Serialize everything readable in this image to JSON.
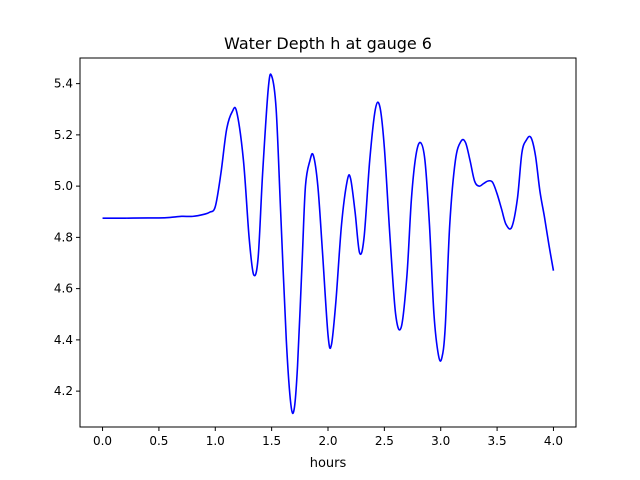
{
  "chart_data": {
    "type": "line",
    "title": "Water Depth h at gauge 6",
    "xlabel": "hours",
    "ylabel": "",
    "xlim": [
      -0.2,
      4.2
    ],
    "ylim": [
      4.06,
      5.5
    ],
    "xticks": [
      0.0,
      0.5,
      1.0,
      1.5,
      2.0,
      2.5,
      3.0,
      3.5,
      4.0
    ],
    "xtick_labels": [
      "0.0",
      "0.5",
      "1.0",
      "1.5",
      "2.0",
      "2.5",
      "3.0",
      "3.5",
      "4.0"
    ],
    "yticks": [
      4.2,
      4.4,
      4.6,
      4.8,
      5.0,
      5.2,
      5.4
    ],
    "ytick_labels": [
      "4.2",
      "4.4",
      "4.6",
      "4.8",
      "5.0",
      "5.2",
      "5.4"
    ],
    "grid": false,
    "legend": "none",
    "series": [
      {
        "color": "#0000ff",
        "x": [
          0.0,
          0.2,
          0.4,
          0.5,
          0.6,
          0.7,
          0.8,
          0.9,
          0.95,
          1.0,
          1.05,
          1.1,
          1.15,
          1.19,
          1.25,
          1.3,
          1.34,
          1.38,
          1.42,
          1.47,
          1.5,
          1.54,
          1.58,
          1.63,
          1.67,
          1.7,
          1.73,
          1.77,
          1.8,
          1.84,
          1.87,
          1.91,
          1.95,
          2.0,
          2.03,
          2.07,
          2.12,
          2.17,
          2.2,
          2.24,
          2.28,
          2.32,
          2.37,
          2.42,
          2.46,
          2.5,
          2.55,
          2.6,
          2.65,
          2.7,
          2.74,
          2.78,
          2.82,
          2.86,
          2.9,
          2.94,
          2.98,
          3.01,
          3.04,
          3.08,
          3.13,
          3.18,
          3.22,
          3.26,
          3.3,
          3.34,
          3.38,
          3.42,
          3.46,
          3.5,
          3.54,
          3.58,
          3.63,
          3.68,
          3.72,
          3.76,
          3.8,
          3.84,
          3.88,
          3.92,
          3.96,
          4.0
        ],
        "y": [
          4.875,
          4.875,
          4.876,
          4.876,
          4.878,
          4.882,
          4.882,
          4.89,
          4.898,
          4.92,
          5.05,
          5.22,
          5.29,
          5.29,
          5.1,
          4.8,
          4.655,
          4.72,
          5.05,
          5.38,
          5.43,
          5.3,
          4.9,
          4.4,
          4.15,
          4.13,
          4.3,
          4.7,
          5.0,
          5.1,
          5.12,
          5.0,
          4.75,
          4.42,
          4.38,
          4.55,
          4.85,
          5.02,
          5.03,
          4.9,
          4.74,
          4.8,
          5.1,
          5.3,
          5.31,
          5.15,
          4.8,
          4.5,
          4.45,
          4.65,
          4.95,
          5.12,
          5.17,
          5.1,
          4.85,
          4.5,
          4.34,
          4.33,
          4.45,
          4.85,
          5.1,
          5.175,
          5.17,
          5.1,
          5.02,
          5.0,
          5.01,
          5.02,
          5.015,
          4.97,
          4.91,
          4.85,
          4.84,
          4.95,
          5.13,
          5.18,
          5.19,
          5.12,
          4.98,
          4.88,
          4.77,
          4.67
        ]
      }
    ]
  }
}
